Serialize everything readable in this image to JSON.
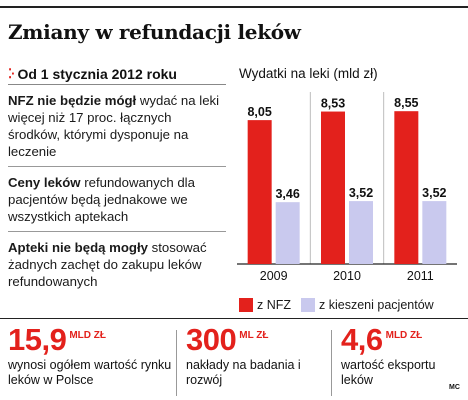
{
  "header": {
    "title": "Zmiany w refundacji leków"
  },
  "facts": {
    "section_title": "Od 1 stycznia 2012 roku",
    "items": [
      {
        "bold": "NFZ nie będzie mógł",
        "text": " wydać na leki więcej niż 17 proc. łącznych środków, którymi dysponuje na leczenie"
      },
      {
        "bold": "Ceny leków",
        "text": " refundowanych dla pacjentów będą jednakowe we wszystkich aptekach"
      },
      {
        "bold": "Apteki nie będą mogły",
        "text": " stosować żadnych zachęt do zakupu leków refundowanych"
      }
    ]
  },
  "chart_data": {
    "type": "bar",
    "title": "Wydatki na leki (mld zł)",
    "categories": [
      "2009",
      "2010",
      "2011"
    ],
    "series": [
      {
        "name": "z NFZ",
        "values": [
          8.05,
          8.53,
          8.55
        ],
        "labels": [
          "8,05",
          "8,53",
          "8,55"
        ],
        "color": "#e3211c"
      },
      {
        "name": "z kieszeni pacjentów",
        "values": [
          3.46,
          3.52,
          3.52
        ],
        "labels": [
          "3,46",
          "3,52",
          "3,52"
        ],
        "color": "#c9c9ee"
      }
    ],
    "grid": true,
    "legend_position": "bottom"
  },
  "stats": [
    {
      "value": "15,9",
      "unit": "MLD ZŁ",
      "desc": "wynosi ogółem wartość rynku leków w Polsce"
    },
    {
      "value": "300",
      "unit": "ML ZŁ",
      "desc": "nakłady na badania i rozwój"
    },
    {
      "value": "4,6",
      "unit": "MLD ZŁ",
      "desc": "wartość eksportu leków"
    }
  ],
  "credit": "MC"
}
